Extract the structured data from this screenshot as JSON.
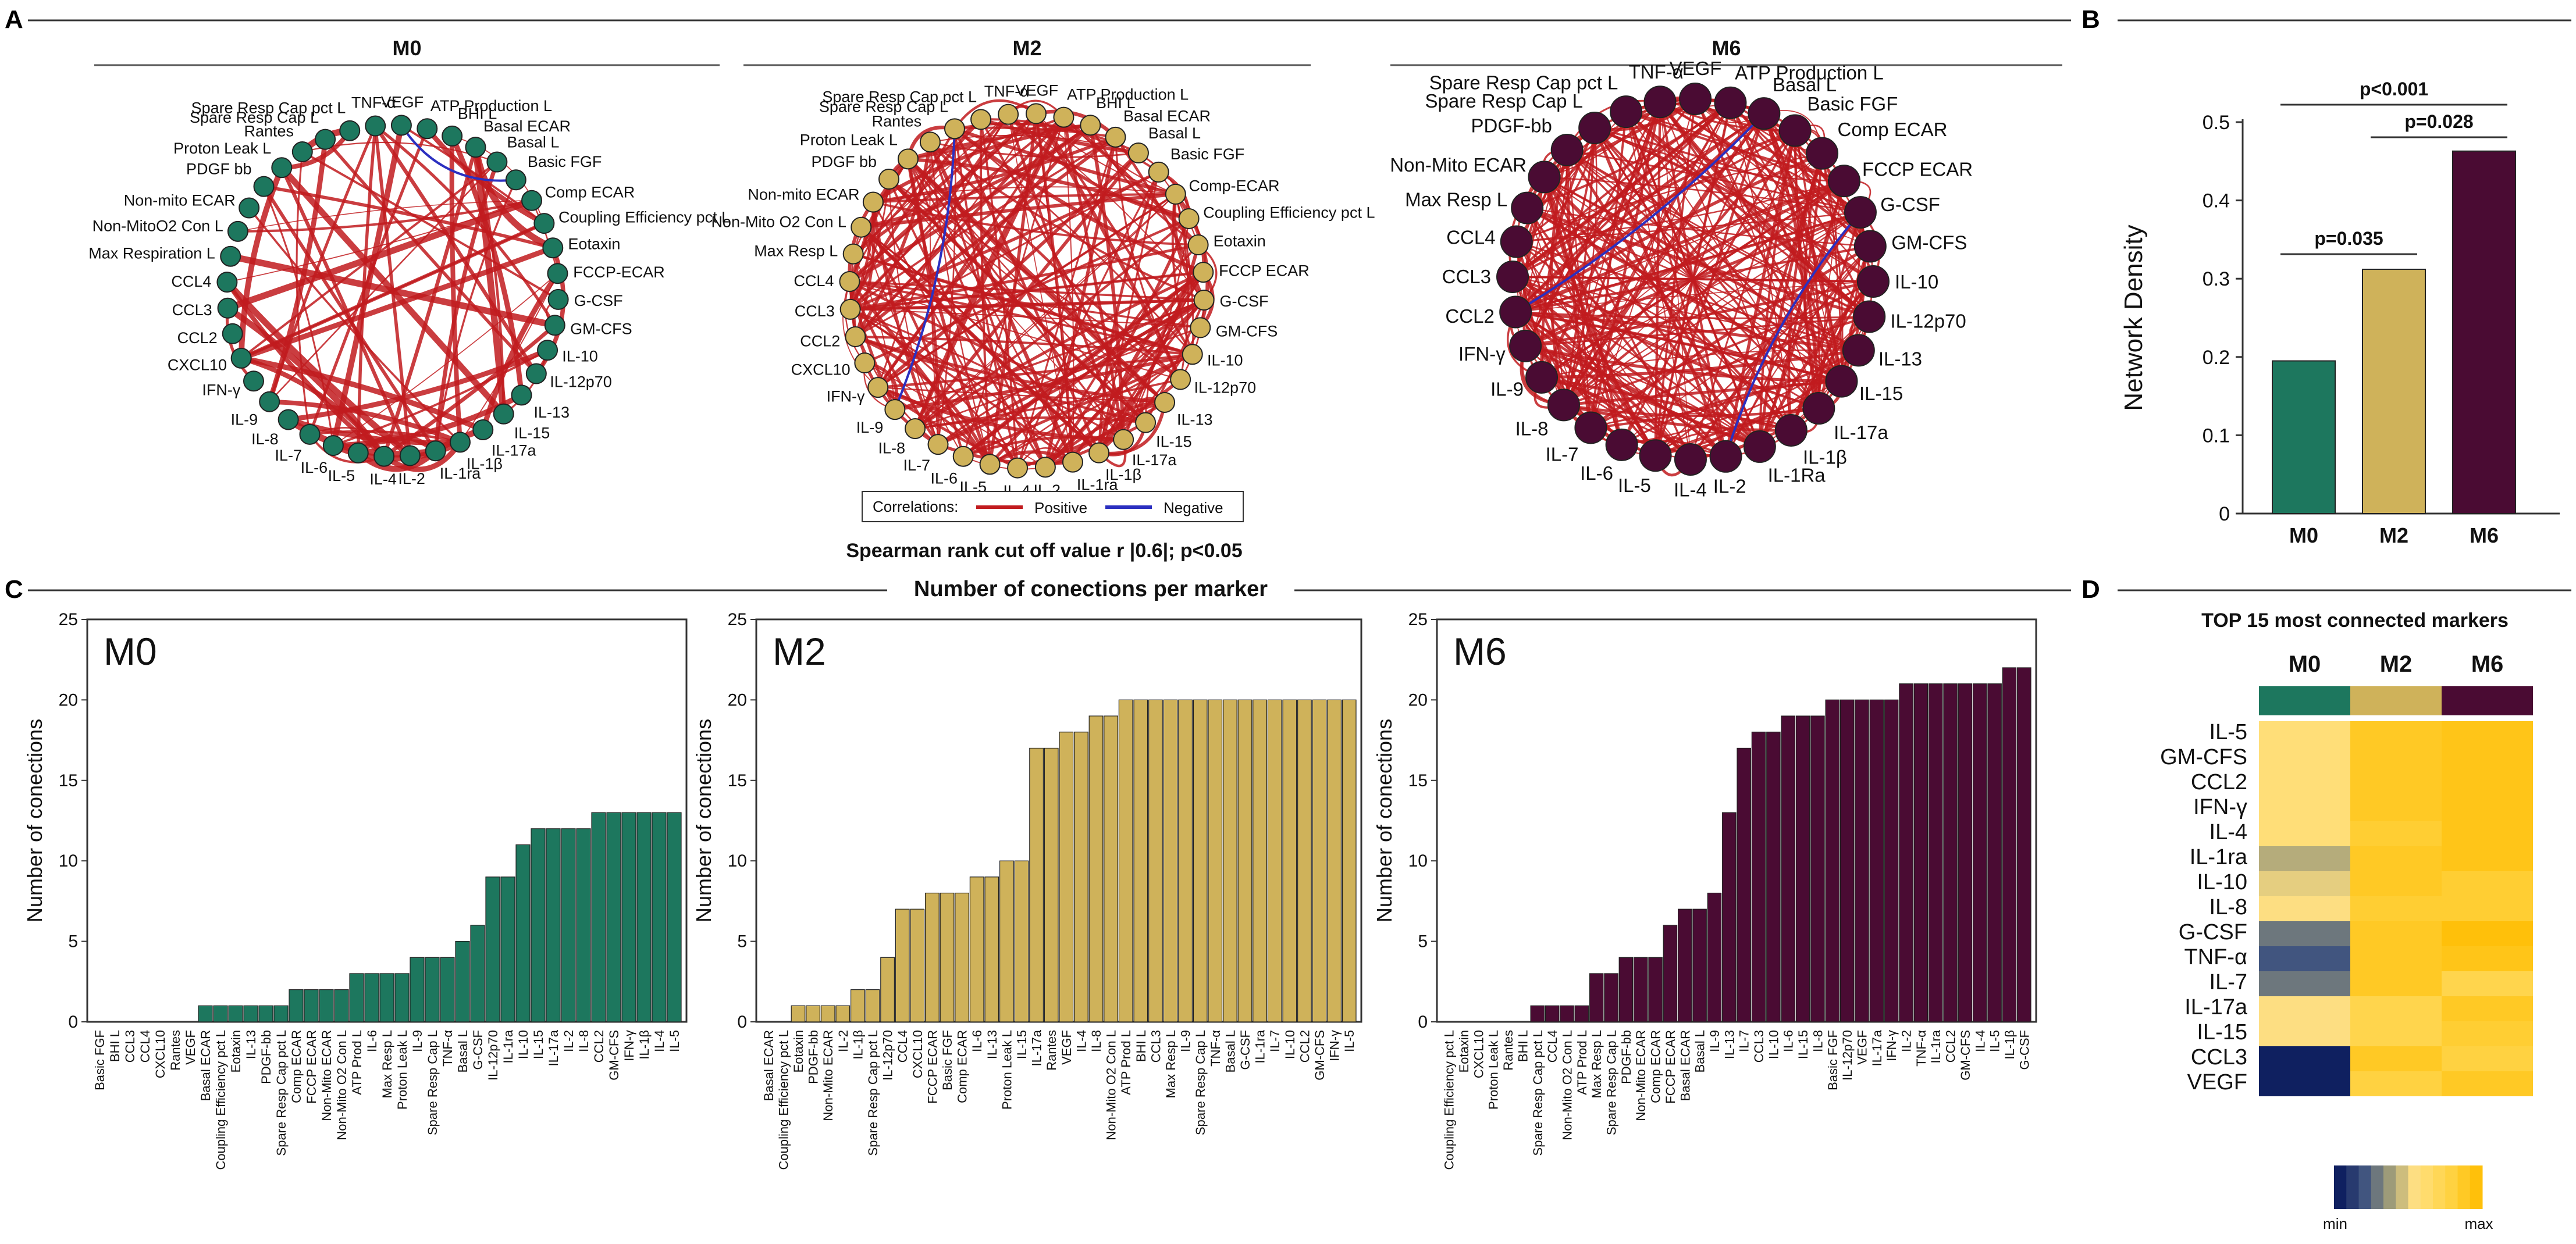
{
  "panels": {
    "A": "A",
    "B": "B",
    "C": "C",
    "D": "D"
  },
  "colors": {
    "M0": "#1d775e",
    "M2": "#cfb25a",
    "M6": "#4a0b33",
    "positive": "#c11b1f",
    "negative": "#2b2fc0",
    "heat_low": "#0f2060",
    "heat_high": "#ffc40d"
  },
  "networks": {
    "items": [
      {
        "key": "M0",
        "title": "M0",
        "nodes": [
          "ATP Production L",
          "BHI L",
          "Basal ECAR",
          "Basal L",
          "Basic FGF",
          "Comp ECAR",
          "Coupling Efficiency pct L",
          "Eotaxin",
          "FCCP-ECAR",
          "G-CSF",
          "GM-CFS",
          "IL-10",
          "IL-12p70",
          "IL-13",
          "IL-15",
          "IL-17a",
          "IL-1β",
          "IL-1ra",
          "IL-2",
          "IL-4",
          "IL-5",
          "IL-6",
          "IL-7",
          "IL-8",
          "IL-9",
          "IFN-γ",
          "CXCL10",
          "CCL2",
          "CCL3",
          "CCL4",
          "Max Respiration L",
          "Non-MitoO2 Con L",
          "Non-mito ECAR",
          "PDGF bb",
          "Proton Leak L",
          "Rantes",
          "Spare Resp Cap L",
          "Spare Resp Cap pct L",
          "TNF-α",
          "VEGF"
        ]
      },
      {
        "key": "M2",
        "title": "M2",
        "nodes": [
          "ATP Production L",
          "BHI L",
          "Basal ECAR",
          "Basal L",
          "Basic FGF",
          "Comp-ECAR",
          "Coupling Efficiency pct L",
          "Eotaxin",
          "FCCP ECAR",
          "G-CSF",
          "GM-CFS",
          "IL-10",
          "IL-12p70",
          "IL-13",
          "IL-15",
          "IL-17a",
          "IL-1β",
          "IL-1ra",
          "IL-2",
          "IL-4",
          "IL-5",
          "IL-6",
          "IL-7",
          "IL-8",
          "IL-9",
          "IFN-γ",
          "CXCL10",
          "CCL2",
          "CCL3",
          "CCL4",
          "Max Resp L",
          "Non-Mito O2 Con L",
          "Non-mito ECAR",
          "PDGF bb",
          "Proton Leak L",
          "Rantes",
          "Spare Resp Cap L",
          "Spare Resp Cap pct L",
          "TNF-α",
          "VEGF"
        ]
      },
      {
        "key": "M6",
        "title": "M6",
        "nodes": [
          "ATP Production L",
          "Basal L",
          "Basic FGF",
          "Comp ECAR",
          "FCCP ECAR",
          "G-CSF",
          "GM-CFS",
          "IL-10",
          "IL-12p70",
          "IL-13",
          "IL-15",
          "IL-17a",
          "IL-1β",
          "IL-1Ra",
          "IL-2",
          "IL-4",
          "IL-5",
          "IL-6",
          "IL-7",
          "IL-8",
          "IL-9",
          "IFN-γ",
          "CCL2",
          "CCL3",
          "CCL4",
          "Max Resp L",
          "Non-Mito ECAR",
          "PDGF-bb",
          "Spare Resp Cap L",
          "Spare Resp Cap pct L",
          "TNF-α",
          "VEGF"
        ]
      }
    ],
    "legend": {
      "title": "Correlations:",
      "positive": "Positive",
      "negative": "Negative"
    },
    "caption": "Spearman rank cut off value r |0.6|;  p<0.05"
  },
  "chart_data": [
    {
      "id": "B",
      "type": "bar",
      "title": "",
      "xlabel": "",
      "ylabel": "Network Density",
      "categories": [
        "M0",
        "M2",
        "M6"
      ],
      "values": [
        0.195,
        0.312,
        0.463
      ],
      "ylim": [
        0,
        0.5
      ],
      "yticks": [
        "0",
        "0.1",
        "0.2",
        "0.3",
        "0.4",
        "0.5"
      ],
      "annotations": [
        {
          "from": "M0",
          "to": "M2",
          "label": "p=0.035"
        },
        {
          "from": "M2",
          "to": "M6",
          "label": "p=0.028"
        },
        {
          "from": "M0",
          "to": "M6",
          "label": "p<0.001"
        }
      ]
    },
    {
      "id": "C",
      "type": "bar",
      "title": "Number of conections per marker",
      "ylabel": "Number of conections",
      "ylim": [
        0,
        25
      ],
      "yticks": [
        "0",
        "5",
        "10",
        "15",
        "20",
        "25"
      ],
      "series": [
        {
          "name": "M0",
          "categories": [
            "Basic FGF",
            "BHI L",
            "CCL3",
            "CCL4",
            "CXCL10",
            "Rantes",
            "VEGF",
            "Basal ECAR",
            "Coupling Efficiency pct L",
            "Eotaxin",
            "IL-13",
            "PDGF-bb",
            "Spare Resp Cap pct L",
            "Comp ECAR",
            "FCCP ECAR",
            "Non-Mito ECAR",
            "Non-Mito O2 Con L",
            "ATP Prod L",
            "IL-6",
            "Max Resp L",
            "Proton Leak L",
            "IL-9",
            "Spare Resp Cap L",
            "TNF-α",
            "Basal L",
            "G-CSF",
            "IL-12p70",
            "IL-1ra",
            "IL-10",
            "IL-15",
            "IL-17a",
            "IL-2",
            "IL-8",
            "CCL2",
            "GM-CFS",
            "IFN-γ",
            "IL-1β",
            "IL-4",
            "IL-5"
          ],
          "values": [
            0,
            0,
            0,
            0,
            0,
            0,
            0,
            1,
            1,
            1,
            1,
            1,
            1,
            2,
            2,
            2,
            2,
            3,
            3,
            3,
            3,
            4,
            4,
            4,
            5,
            6,
            9,
            9,
            11,
            12,
            12,
            12,
            12,
            13,
            13,
            13,
            13,
            13,
            13
          ]
        },
        {
          "name": "M2",
          "categories": [
            "Basal ECAR",
            "Coupling Efficiency pct L",
            "Eotaxin",
            "PDGF-bb",
            "Non-Mito ECAR",
            "IL-2",
            "IL-1β",
            "Spare Resp Cap pct L",
            "IL-12p70",
            "CCL4",
            "CXCL10",
            "FCCP ECAR",
            "Basic FGF",
            "Comp ECAR",
            "IL-6",
            "IL-13",
            "Proton Leak L",
            "IL-15",
            "IL-17a",
            "Rantes",
            "VEGF",
            "IL-4",
            "IL-8",
            "Non-Mito O2 Con L",
            "ATP Prod L",
            "BHI L",
            "CCL3",
            "Max Resp L",
            "IL-9",
            "Spare Resp Cap L",
            "TNF-α",
            "Basal L",
            "G-CSF",
            "IL-1ra",
            "IL-7",
            "IL-10",
            "CCL2",
            "GM-CFS",
            "IFN-γ",
            "IL-5"
          ],
          "values": [
            0,
            0,
            1,
            1,
            1,
            1,
            2,
            2,
            4,
            7,
            7,
            8,
            8,
            8,
            9,
            9,
            10,
            10,
            17,
            17,
            18,
            18,
            19,
            19,
            20,
            20,
            20,
            20,
            20,
            20,
            20,
            20,
            20,
            20,
            20,
            20,
            20,
            20,
            20,
            20
          ]
        },
        {
          "name": "M6",
          "categories": [
            "Coupling Efficiency pct L",
            "Eotaxin",
            "CXCL10",
            "Proton Leak L",
            "Rantes",
            "BHI L",
            "Spare Resp Cap pct L",
            "CCL4",
            "Non-Mito O2 Con L",
            "ATP Prod L",
            "Max Resp L",
            "Spare Resp Cap L",
            "PDGF-bb",
            "Non-Mito ECAR",
            "Comp ECAR",
            "FCCP ECAR",
            "Basal ECAR",
            "Basal L",
            "IL-9",
            "IL-13",
            "IL-7",
            "CCL3",
            "IL-10",
            "IL-6",
            "IL-15",
            "IL-8",
            "Basic FGF",
            "IL-12p70",
            "VEGF",
            "IL-17a",
            "IFN-γ",
            "IL-2",
            "TNF-α",
            "IL-1ra",
            "CCL2",
            "GM-CFS",
            "IL-4",
            "IL-5",
            "IL-1β",
            "G-CSF"
          ],
          "values": [
            0,
            0,
            0,
            0,
            0,
            0,
            1,
            1,
            1,
            1,
            3,
            3,
            4,
            4,
            4,
            6,
            7,
            7,
            8,
            13,
            17,
            18,
            18,
            19,
            19,
            19,
            20,
            20,
            20,
            20,
            20,
            21,
            21,
            21,
            21,
            21,
            21,
            21,
            22,
            22
          ]
        }
      ]
    },
    {
      "id": "D",
      "type": "heatmap",
      "title": "TOP 15 most connected markers",
      "columns": [
        "M0",
        "M2",
        "M6"
      ],
      "rows": [
        "IL-5",
        "GM-CFS",
        "CCL2",
        "IFN-γ",
        "IL-4",
        "IL-1ra",
        "IL-10",
        "IL-8",
        "G-CSF",
        "TNF-α",
        "IL-7",
        "IL-17a",
        "IL-15",
        "CCL3",
        "VEGF"
      ],
      "values": [
        [
          13,
          20,
          21
        ],
        [
          13,
          20,
          21
        ],
        [
          13,
          20,
          21
        ],
        [
          13,
          20,
          21
        ],
        [
          13,
          19,
          21
        ],
        [
          9,
          20,
          21
        ],
        [
          11,
          20,
          19
        ],
        [
          12,
          19,
          19
        ],
        [
          6,
          20,
          22
        ],
        [
          4,
          20,
          21
        ],
        [
          6,
          20,
          17
        ],
        [
          12,
          17,
          20
        ],
        [
          12,
          17,
          19
        ],
        [
          0,
          20,
          18
        ],
        [
          0,
          18,
          20
        ]
      ],
      "scale": {
        "min": 0,
        "max": 22,
        "min_label": "min",
        "max_label": "max"
      }
    }
  ]
}
